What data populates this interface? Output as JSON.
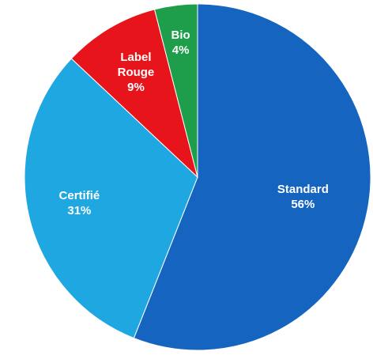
{
  "chart_data": {
    "type": "pie",
    "title": "",
    "start_angle_deg": 0,
    "direction": "clockwise",
    "slices": [
      {
        "label": "Standard",
        "value": 56,
        "value_label": "56%",
        "color": "#1565C0"
      },
      {
        "label": "Certifié",
        "value": 31,
        "value_label": "31%",
        "color": "#1EA7E1"
      },
      {
        "label": "Label\nRouge",
        "value": 9,
        "value_label": "9%",
        "color": "#E8141B"
      },
      {
        "label": "Bio",
        "value": 4,
        "value_label": "4%",
        "color": "#1E9E4A"
      }
    ],
    "legend": "none",
    "labels_inside": true
  }
}
